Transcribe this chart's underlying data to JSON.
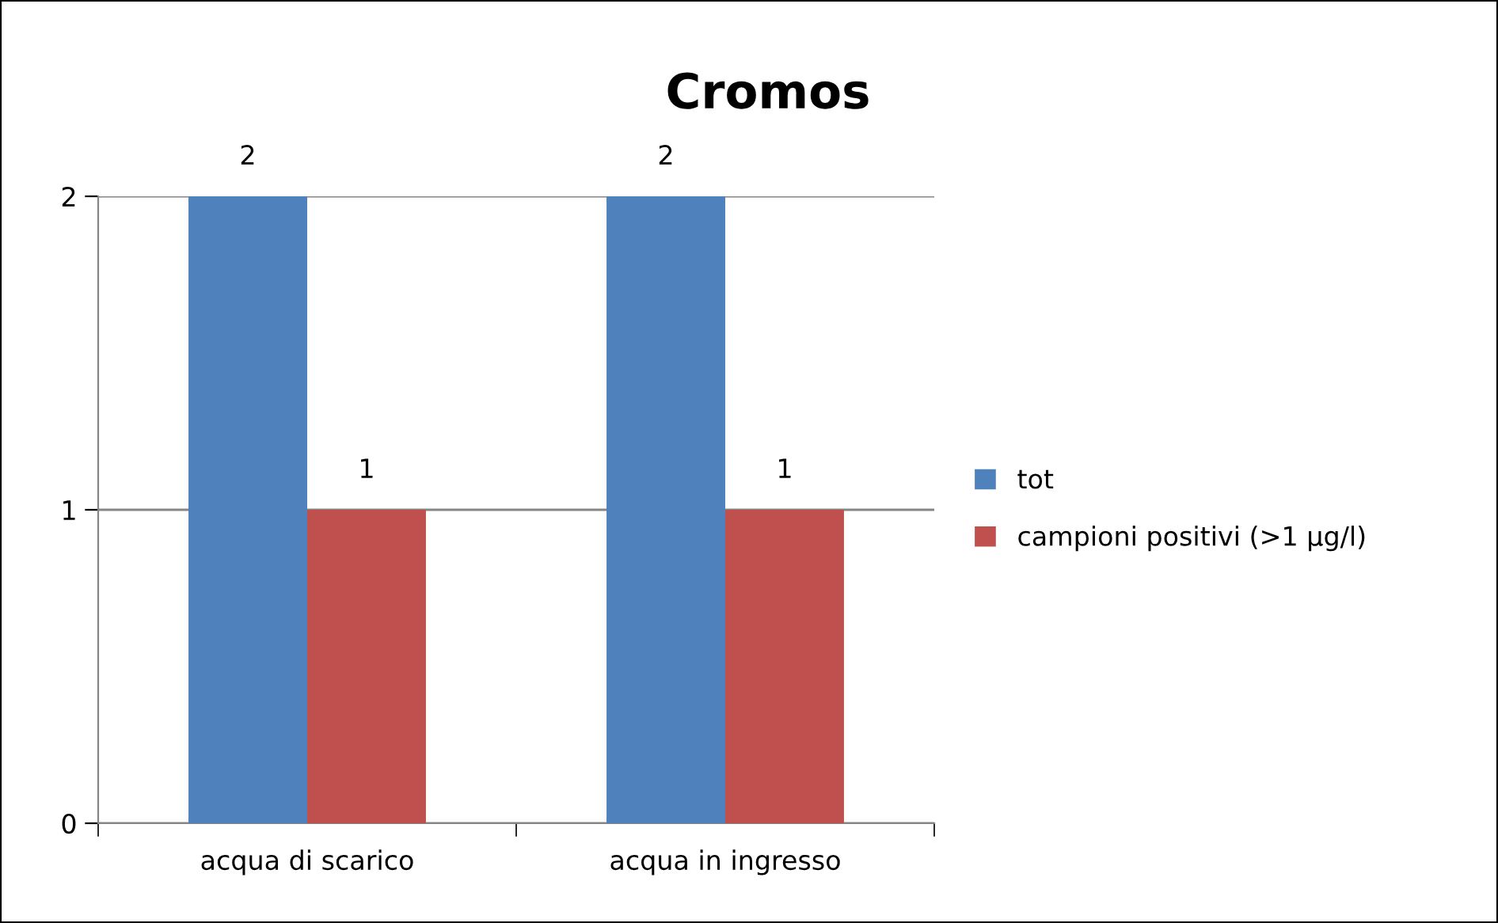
{
  "chart_data": {
    "type": "bar",
    "title": "Cromos",
    "categories": [
      "acqua di scarico",
      "acqua in ingresso"
    ],
    "series": [
      {
        "name": "tot",
        "color": "#4f81bd",
        "values": [
          2,
          2
        ]
      },
      {
        "name": "campioni positivi (>1 µg/l)",
        "color": "#c0504d",
        "values": [
          1,
          1
        ]
      }
    ],
    "ylim": [
      0,
      2
    ],
    "yticks": [
      0,
      1,
      2
    ],
    "grid": "y",
    "legend": "right",
    "data_labels": true
  }
}
